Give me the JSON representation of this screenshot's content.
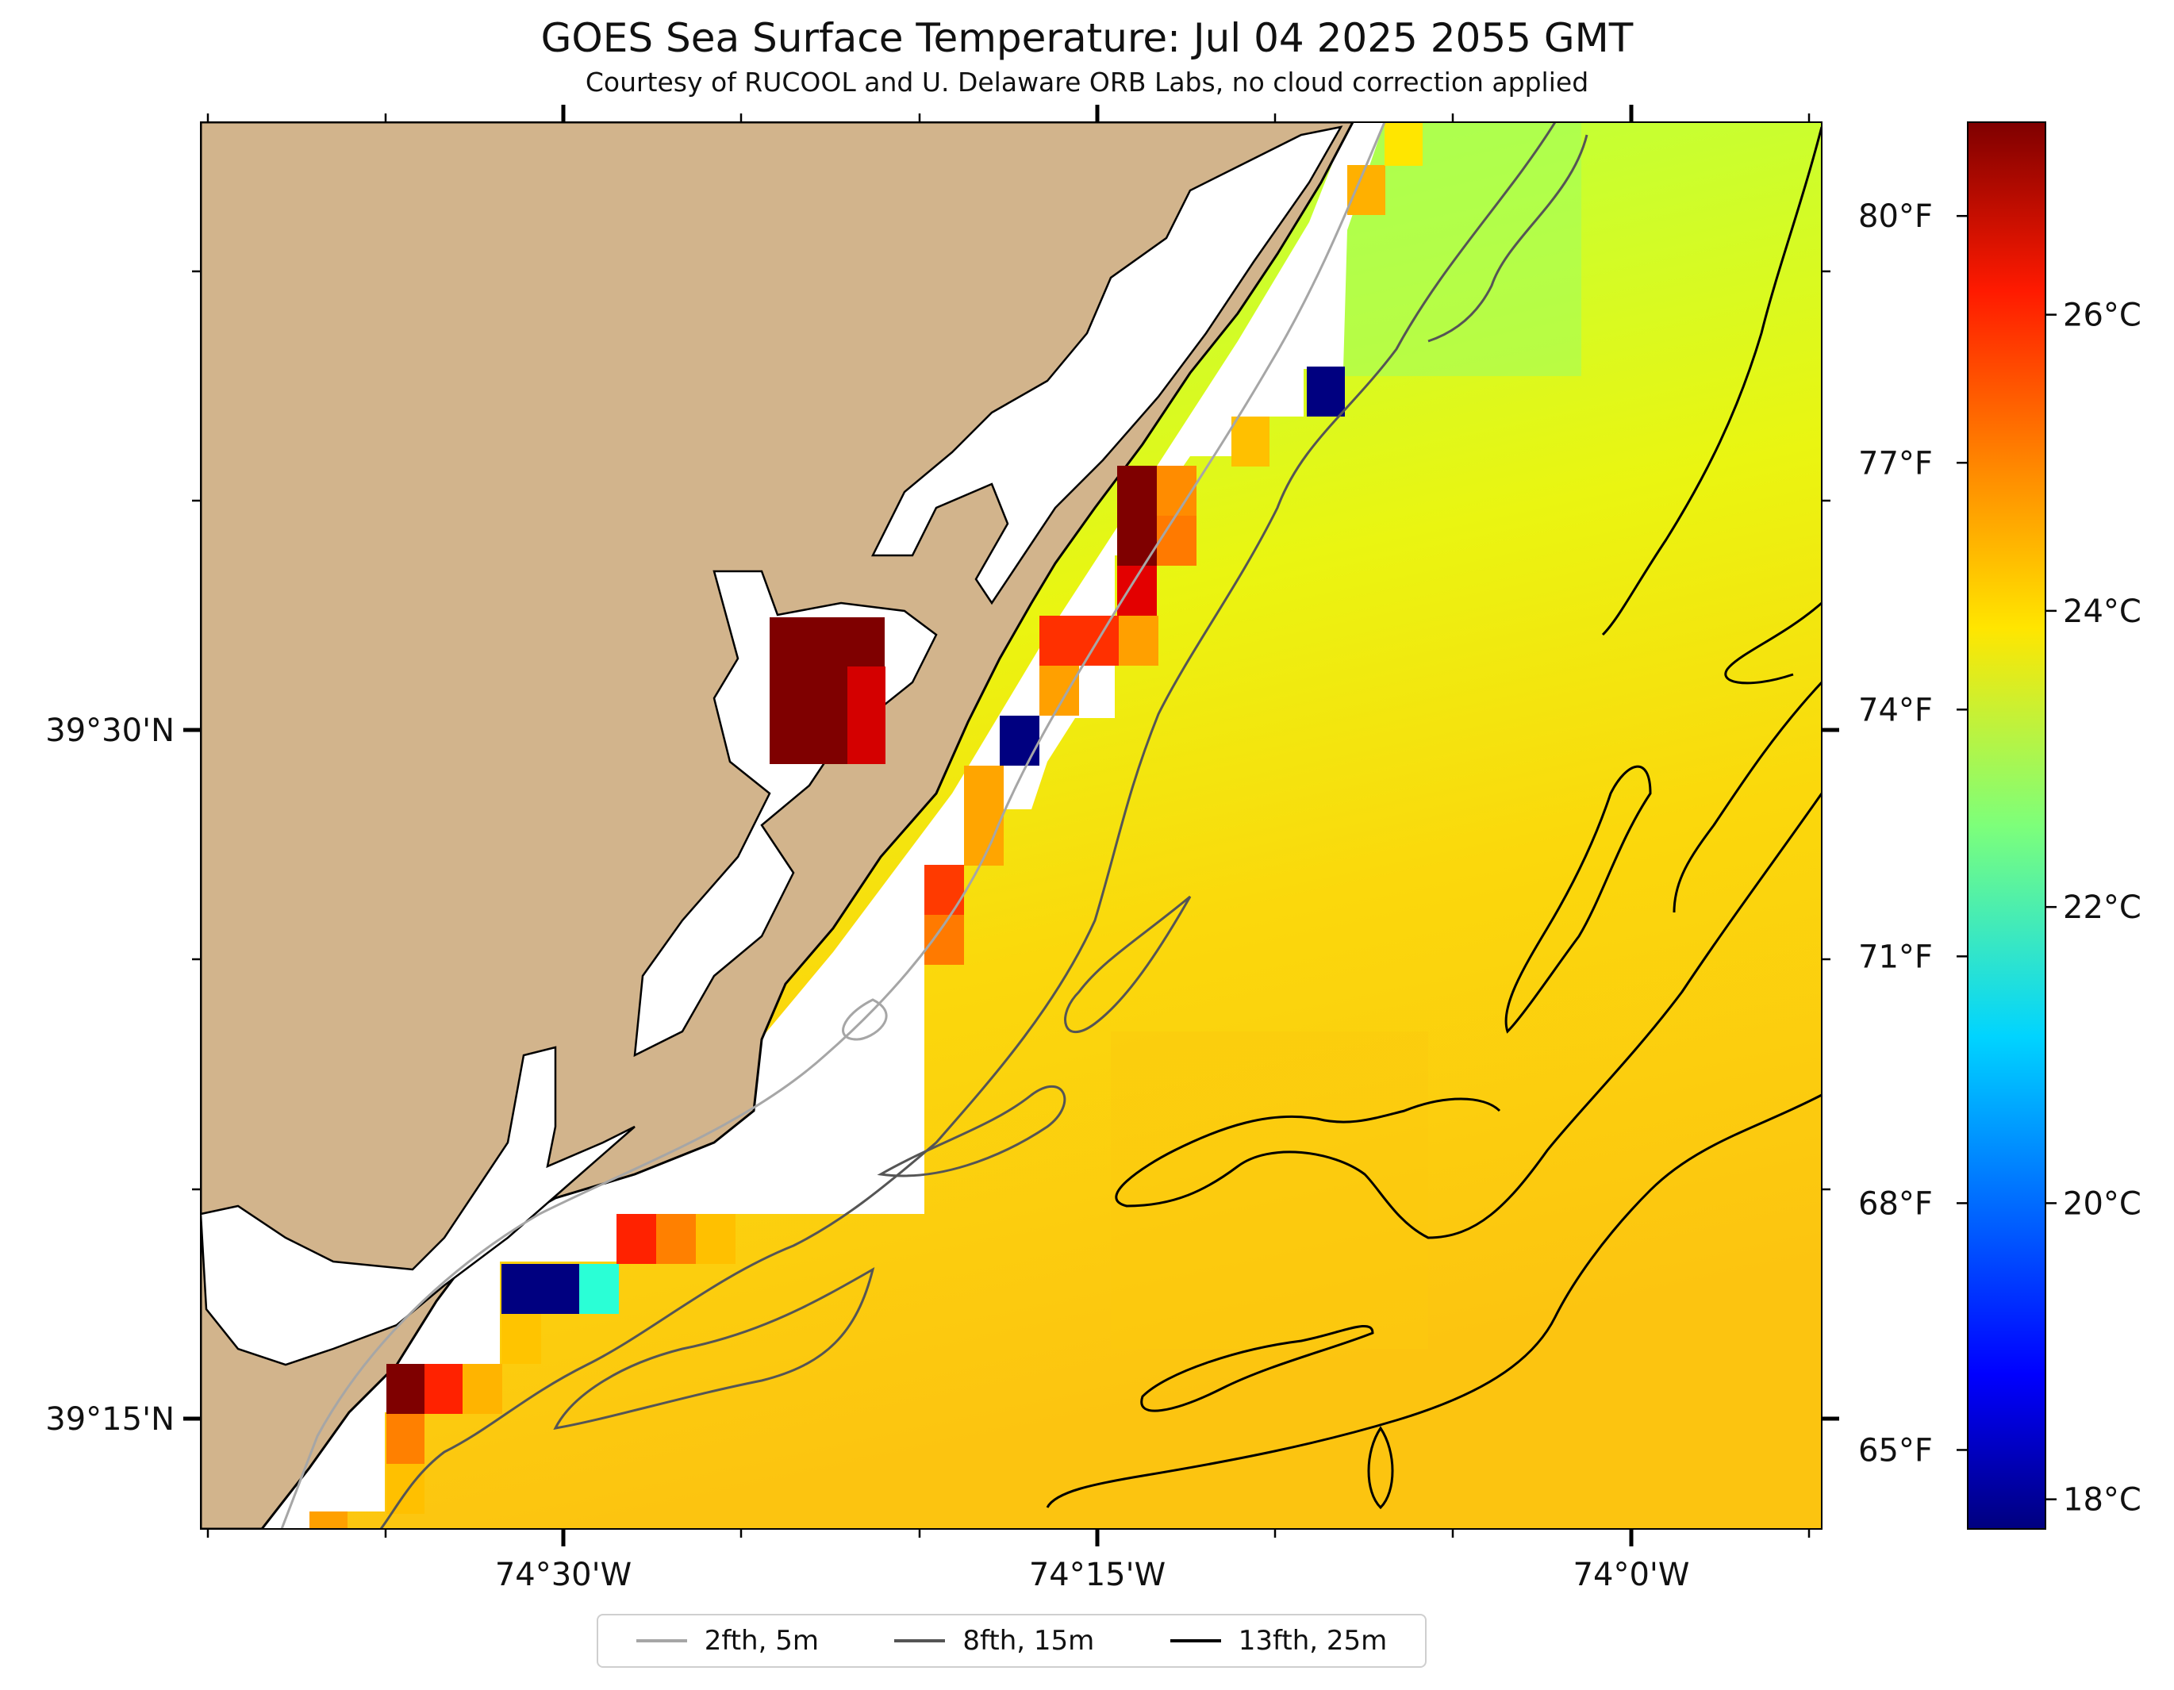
{
  "title": "GOES Sea Surface Temperature: Jul 04 2025 2055 GMT",
  "subtitle": "Courtesy of RUCOOL and U. Delaware ORB Labs, no cloud correction applied",
  "map": {
    "longitude_ticks": [
      "74°30'W",
      "74°15'W",
      "74°0'W"
    ],
    "latitude_ticks": [
      "39°30'N",
      "39°15'N"
    ],
    "colors": {
      "land": "#d2b48c",
      "coastline": "#000000",
      "no_data": "#ffffff"
    },
    "sst_field": {
      "description_colormap": "jet",
      "units": "°C",
      "range_c": [
        17.8,
        27.3
      ],
      "nearshore_warm_pixels_c": [
        27.3,
        26.4,
        25.6,
        24.8
      ],
      "nearshore_cold_pixels_c": [
        17.9
      ],
      "offshore_typical_c": [
        23.2,
        24.0,
        24.5
      ]
    }
  },
  "colorbar": {
    "colormap": "jet",
    "range_c": [
      17.8,
      27.3
    ],
    "celsius_ticks": [
      {
        "label": "18°C",
        "value": 18
      },
      {
        "label": "20°C",
        "value": 20
      },
      {
        "label": "22°C",
        "value": 22
      },
      {
        "label": "24°C",
        "value": 24
      },
      {
        "label": "26°C",
        "value": 26
      }
    ],
    "fahrenheit_ticks": [
      {
        "label": "65°F",
        "value": 65
      },
      {
        "label": "68°F",
        "value": 68
      },
      {
        "label": "71°F",
        "value": 71
      },
      {
        "label": "74°F",
        "value": 74
      },
      {
        "label": "77°F",
        "value": 77
      },
      {
        "label": "80°F",
        "value": 80
      }
    ]
  },
  "legend": {
    "items": [
      {
        "label": "2fth, 5m",
        "color": "#a6a6a6"
      },
      {
        "label": "8fth, 15m",
        "color": "#555555"
      },
      {
        "label": "13fth, 25m",
        "color": "#000000"
      }
    ]
  }
}
